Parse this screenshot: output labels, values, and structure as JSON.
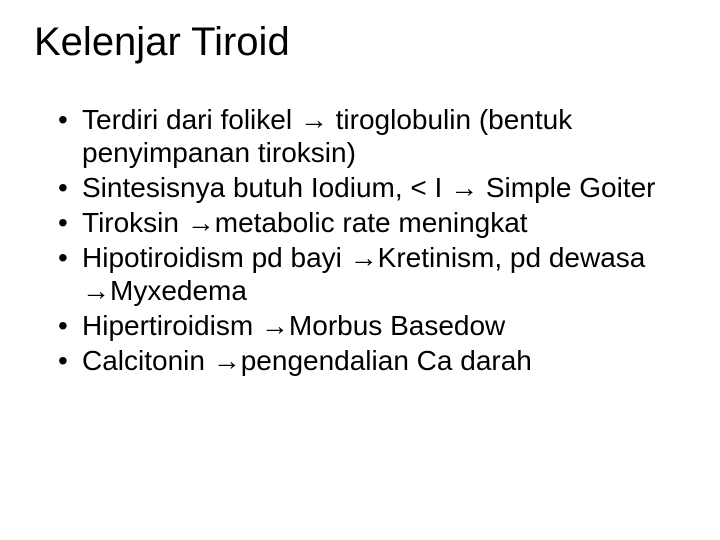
{
  "slide": {
    "title": "Kelenjar Tiroid",
    "bullets": [
      "Terdiri dari folikel → tiroglobulin (bentuk penyimpanan tiroksin)",
      "Sintesisnya butuh Iodium, < I → Simple Goiter",
      "Tiroksin →metabolic rate meningkat",
      "Hipotiroidism pd bayi →Kretinism, pd dewasa →Myxedema",
      "Hipertiroidism →Morbus Basedow",
      "Calcitonin →pengendalian Ca darah"
    ],
    "colors": {
      "background": "#ffffff",
      "text": "#000000"
    },
    "typography": {
      "title_fontsize": 40,
      "title_weight": "normal",
      "bullet_fontsize": 28,
      "bullet_weight": "normal",
      "font_family": "Arial"
    }
  }
}
